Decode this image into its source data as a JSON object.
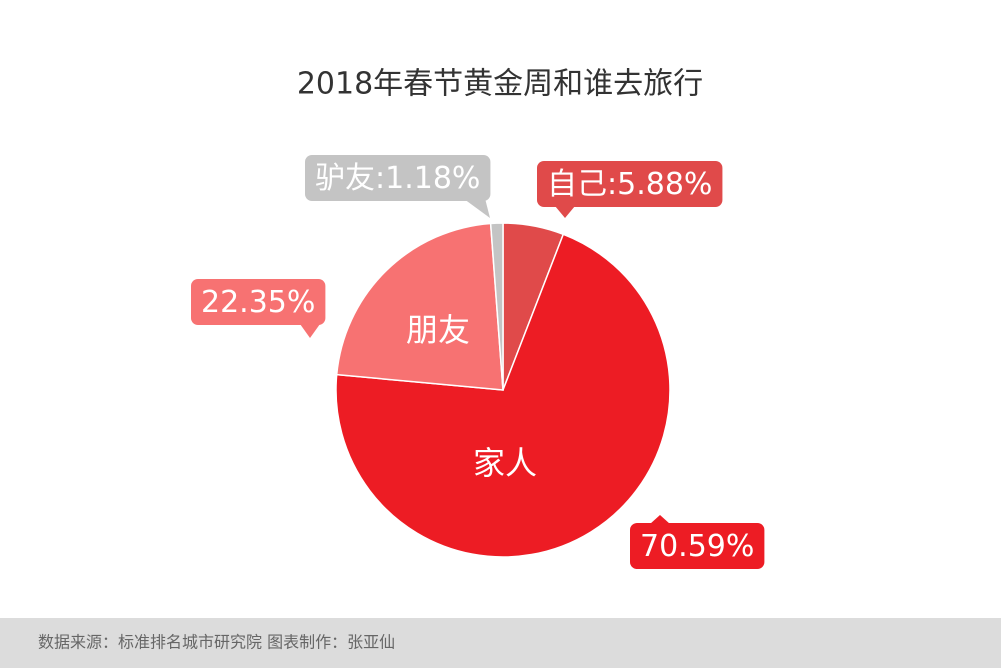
{
  "chart_data": {
    "type": "pie",
    "title": "2018年春节黄金周和谁去旅行",
    "categories": [
      "自己",
      "家人",
      "朋友",
      "驴友"
    ],
    "values": [
      5.88,
      70.59,
      22.35,
      1.18
    ],
    "value_labels": [
      ":5.88%",
      "70.59%",
      "22.35%",
      ":1.18%"
    ],
    "colors": [
      "#e04a4a",
      "#ed1c24",
      "#f77272",
      "#c4c4c4"
    ],
    "source": "数据来源：标准排名城市研究院  图表制作：张亚仙"
  }
}
